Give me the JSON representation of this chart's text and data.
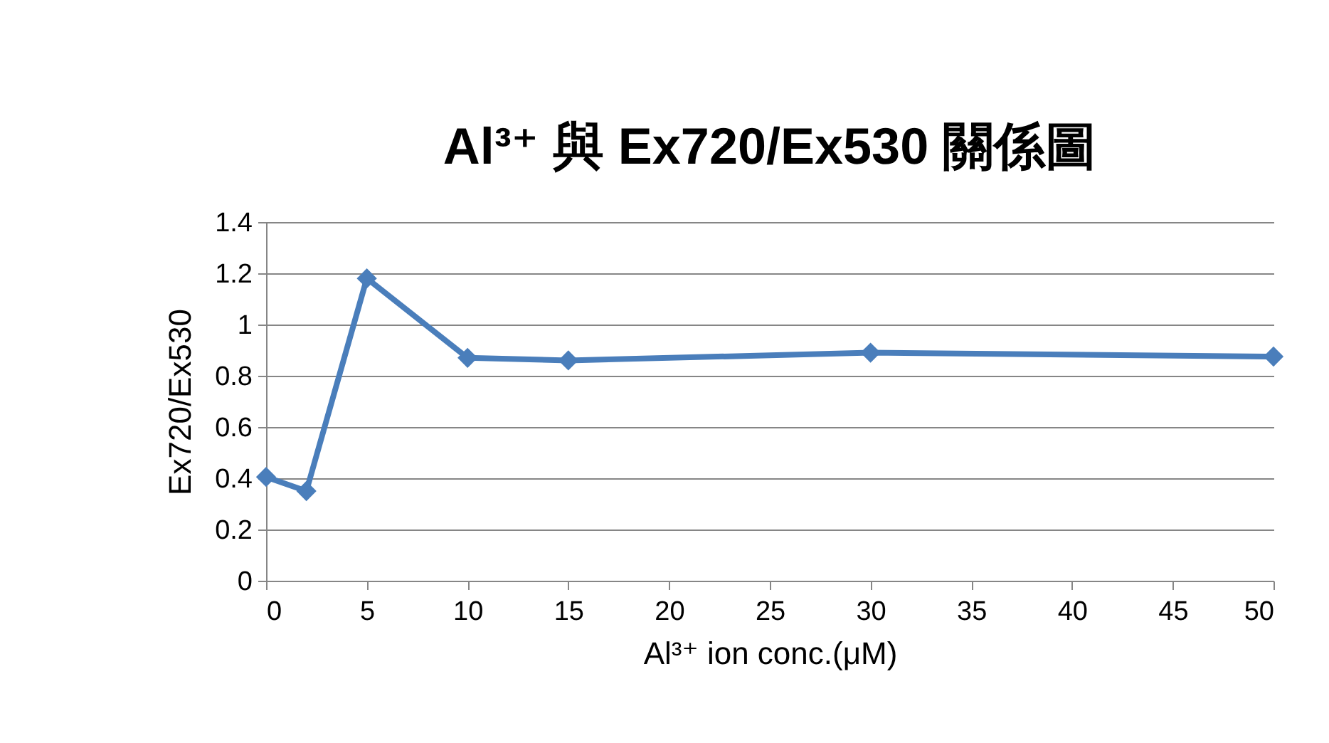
{
  "chart_data": {
    "type": "line",
    "title": "Al³⁺ 與 Ex720/Ex530 關係圖",
    "xlabel": "Al³⁺ ion conc.(μM)",
    "ylabel": "Ex720/Ex530",
    "x": [
      0,
      2,
      5,
      10,
      15,
      30,
      50
    ],
    "series": [
      {
        "color": "#4a7ebb",
        "values": [
          0.405,
          0.35,
          1.18,
          0.87,
          0.86,
          0.89,
          0.875
        ]
      }
    ],
    "xlim": [
      0,
      50
    ],
    "xticks": [
      0,
      5,
      10,
      15,
      20,
      25,
      30,
      35,
      40,
      45,
      50
    ],
    "ylim": [
      0,
      1.4
    ],
    "yticks": [
      0,
      0.2,
      0.4,
      0.6,
      0.8,
      1,
      1.2,
      1.4
    ],
    "grid": "y",
    "marker": "diamond",
    "line_style": "solid",
    "legend": false
  }
}
